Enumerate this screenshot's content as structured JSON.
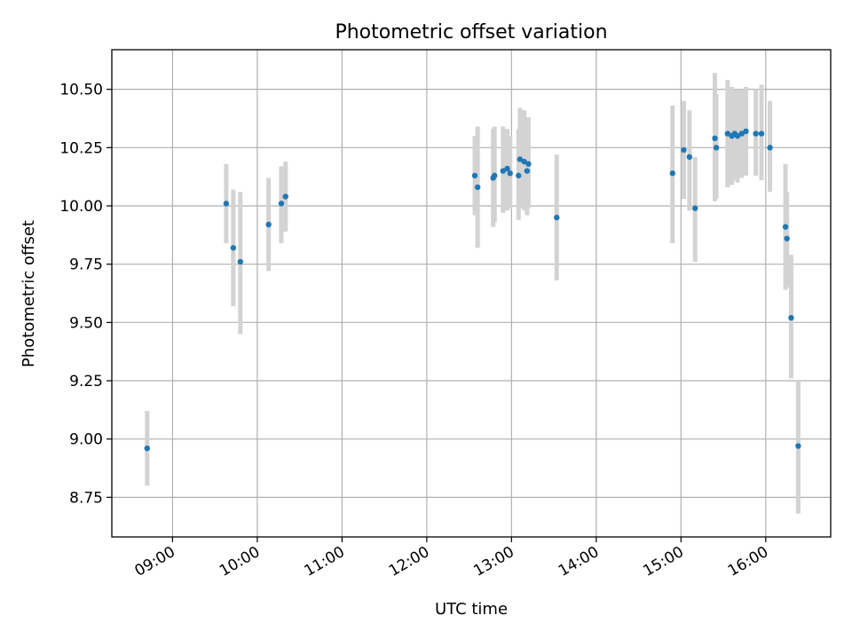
{
  "chart_data": {
    "type": "scatter",
    "title": "Photometric offset variation",
    "xlabel": "UTC time",
    "ylabel": "Photometric offset",
    "x_is_time": true,
    "xlim": [
      "08:17",
      "16:46"
    ],
    "ylim": [
      8.58,
      10.67
    ],
    "x_ticks": [
      "09:00",
      "10:00",
      "11:00",
      "12:00",
      "13:00",
      "14:00",
      "15:00",
      "16:00"
    ],
    "y_ticks": [
      8.75,
      9.0,
      9.25,
      9.5,
      9.75,
      10.0,
      10.25,
      10.5
    ],
    "y_tick_labels": [
      "8.75",
      "9.00",
      "9.25",
      "9.50",
      "9.75",
      "10.00",
      "10.25",
      "10.50"
    ],
    "grid": true,
    "marker_color": "#1f77b4",
    "errorbar_color": "#d3d3d3",
    "points": [
      {
        "t": "08:42",
        "y": 8.96,
        "lo": 8.8,
        "hi": 9.12
      },
      {
        "t": "09:38",
        "y": 10.01,
        "lo": 9.84,
        "hi": 10.18
      },
      {
        "t": "09:43",
        "y": 9.82,
        "lo": 9.57,
        "hi": 10.07
      },
      {
        "t": "09:48",
        "y": 9.76,
        "lo": 9.45,
        "hi": 10.06
      },
      {
        "t": "10:08",
        "y": 9.92,
        "lo": 9.72,
        "hi": 10.12
      },
      {
        "t": "10:17",
        "y": 10.01,
        "lo": 9.84,
        "hi": 10.17
      },
      {
        "t": "10:20",
        "y": 10.04,
        "lo": 9.89,
        "hi": 10.19
      },
      {
        "t": "12:34",
        "y": 10.13,
        "lo": 9.96,
        "hi": 10.3
      },
      {
        "t": "12:36",
        "y": 10.08,
        "lo": 9.82,
        "hi": 10.34
      },
      {
        "t": "12:47",
        "y": 10.12,
        "lo": 9.91,
        "hi": 10.33
      },
      {
        "t": "12:48",
        "y": 10.13,
        "lo": 9.93,
        "hi": 10.34
      },
      {
        "t": "12:54",
        "y": 10.15,
        "lo": 9.97,
        "hi": 10.34
      },
      {
        "t": "12:57",
        "y": 10.16,
        "lo": 9.98,
        "hi": 10.33
      },
      {
        "t": "12:59",
        "y": 10.14,
        "lo": 9.99,
        "hi": 10.3
      },
      {
        "t": "13:05",
        "y": 10.13,
        "lo": 9.94,
        "hi": 10.33
      },
      {
        "t": "13:06",
        "y": 10.2,
        "lo": 9.99,
        "hi": 10.42
      },
      {
        "t": "13:09",
        "y": 10.19,
        "lo": 9.98,
        "hi": 10.41
      },
      {
        "t": "13:11",
        "y": 10.15,
        "lo": 9.96,
        "hi": 10.34
      },
      {
        "t": "13:12",
        "y": 10.18,
        "lo": 9.99,
        "hi": 10.38
      },
      {
        "t": "13:32",
        "y": 9.95,
        "lo": 9.68,
        "hi": 10.22
      },
      {
        "t": "14:54",
        "y": 10.14,
        "lo": 9.84,
        "hi": 10.43
      },
      {
        "t": "15:02",
        "y": 10.24,
        "lo": 10.03,
        "hi": 10.45
      },
      {
        "t": "15:06",
        "y": 10.21,
        "lo": 9.98,
        "hi": 10.41
      },
      {
        "t": "15:10",
        "y": 9.99,
        "lo": 9.76,
        "hi": 10.21
      },
      {
        "t": "15:24",
        "y": 10.29,
        "lo": 10.02,
        "hi": 10.57
      },
      {
        "t": "15:25",
        "y": 10.25,
        "lo": 10.03,
        "hi": 10.48
      },
      {
        "t": "15:33",
        "y": 10.31,
        "lo": 10.08,
        "hi": 10.54
      },
      {
        "t": "15:36",
        "y": 10.3,
        "lo": 10.09,
        "hi": 10.51
      },
      {
        "t": "15:38",
        "y": 10.31,
        "lo": 10.11,
        "hi": 10.5
      },
      {
        "t": "15:40",
        "y": 10.3,
        "lo": 10.1,
        "hi": 10.5
      },
      {
        "t": "15:43",
        "y": 10.31,
        "lo": 10.12,
        "hi": 10.5
      },
      {
        "t": "15:46",
        "y": 10.32,
        "lo": 10.13,
        "hi": 10.51
      },
      {
        "t": "15:53",
        "y": 10.31,
        "lo": 10.13,
        "hi": 10.5
      },
      {
        "t": "15:57",
        "y": 10.31,
        "lo": 10.11,
        "hi": 10.52
      },
      {
        "t": "16:03",
        "y": 10.25,
        "lo": 10.06,
        "hi": 10.45
      },
      {
        "t": "16:14",
        "y": 9.91,
        "lo": 9.64,
        "hi": 10.18
      },
      {
        "t": "16:15",
        "y": 9.86,
        "lo": 9.65,
        "hi": 10.06
      },
      {
        "t": "16:18",
        "y": 9.52,
        "lo": 9.26,
        "hi": 9.79
      },
      {
        "t": "16:23",
        "y": 8.97,
        "lo": 8.68,
        "hi": 9.25
      }
    ]
  }
}
